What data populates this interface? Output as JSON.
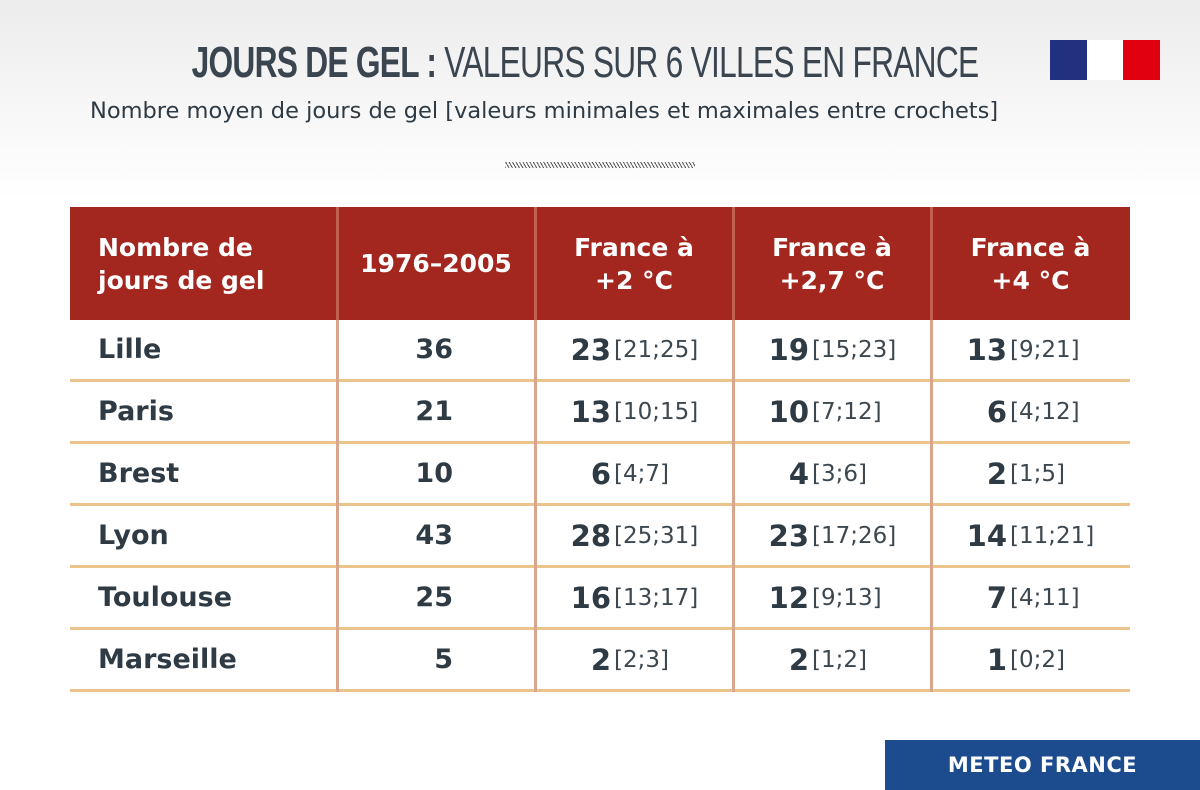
{
  "header": {
    "title_bold": "JOURS DE GEL :",
    "title_light": "VALEURS SUR 6 VILLES EN FRANCE",
    "subtitle": "Nombre moyen de jours de gel [valeurs minimales et maximales entre crochets]",
    "logo": "republique-francaise-marianne-logo",
    "logo_colors": [
      "#22317f",
      "#ffffff",
      "#e1000f"
    ]
  },
  "chart_data": {
    "type": "table",
    "title": "JOURS DE GEL : VALEURS SUR 6 VILLES EN FRANCE",
    "subtitle": "Nombre moyen de jours de gel [valeurs minimales et maximales entre crochets]",
    "columns": [
      "Nombre de jours de gel",
      "1976–2005",
      "France à +2 °C",
      "France à +2,7 °C",
      "France à +4 °C"
    ],
    "column_lines": [
      [
        "Nombre de",
        "jours de gel"
      ],
      [
        "1976–2005"
      ],
      [
        "France à",
        "+2 °C"
      ],
      [
        "France à",
        "+2,7 °C"
      ],
      [
        "France à",
        "+4 °C"
      ]
    ],
    "rows": [
      {
        "city": "Lille",
        "base": "36",
        "s": [
          {
            "v": "23",
            "r": "[21;25]"
          },
          {
            "v": "19",
            "r": "[15;23]"
          },
          {
            "v": "13",
            "r": "[9;21]"
          }
        ]
      },
      {
        "city": "Paris",
        "base": "21",
        "s": [
          {
            "v": "13",
            "r": "[10;15]"
          },
          {
            "v": "10",
            "r": "[7;12]"
          },
          {
            "v": "6",
            "r": "[4;12]"
          }
        ]
      },
      {
        "city": "Brest",
        "base": "10",
        "s": [
          {
            "v": "6",
            "r": "[4;7]"
          },
          {
            "v": "4",
            "r": "[3;6]"
          },
          {
            "v": "2",
            "r": "[1;5]"
          }
        ]
      },
      {
        "city": "Lyon",
        "base": "43",
        "s": [
          {
            "v": "28",
            "r": "[25;31]"
          },
          {
            "v": "23",
            "r": "[17;26]"
          },
          {
            "v": "14",
            "r": "[11;21]"
          }
        ]
      },
      {
        "city": "Toulouse",
        "base": "25",
        "s": [
          {
            "v": "16",
            "r": "[13;17]"
          },
          {
            "v": "12",
            "r": "[9;13]"
          },
          {
            "v": "7",
            "r": "[4;11]"
          }
        ]
      },
      {
        "city": "Marseille",
        "base": "5",
        "s": [
          {
            "v": "2",
            "r": "[2;3]"
          },
          {
            "v": "2",
            "r": "[1;2]"
          },
          {
            "v": "1",
            "r": "[0;2]"
          }
        ]
      }
    ],
    "colors": {
      "header": "#a3271f",
      "row_divider": "#ebc48c",
      "column_divider": "#d9a58c"
    }
  },
  "footer": {
    "brand": "METEO FRANCE",
    "brand_color": "#1c4c8e"
  }
}
